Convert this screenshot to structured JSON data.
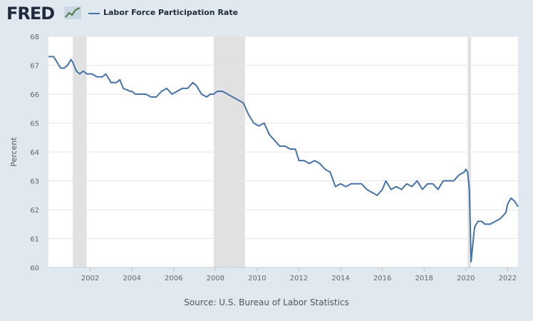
{
  "header": {
    "logo_text": "FRED",
    "logo_icon": "fred-line-mark-icon",
    "series_legend": "Labor Force Participation Rate"
  },
  "colors": {
    "background": "#e1e9f0",
    "plot_background": "#ffffff",
    "line": "#4572a7",
    "recession": "#e1e1e1",
    "grid": "#e6e6e6"
  },
  "chart_data": {
    "type": "line",
    "title": "",
    "xlabel": "",
    "ylabel": "Percent",
    "xlim": [
      "2000-01",
      "2022-07"
    ],
    "ylim": [
      60,
      68
    ],
    "y_ticks": [
      60,
      61,
      62,
      63,
      64,
      65,
      66,
      67,
      68
    ],
    "x_ticks": [
      "2002",
      "2004",
      "2006",
      "2008",
      "2010",
      "2012",
      "2014",
      "2016",
      "2018",
      "2020",
      "2022"
    ],
    "grid": true,
    "legend": "top-left",
    "recessions": [
      {
        "start": "2001-03",
        "end": "2001-11"
      },
      {
        "start": "2007-12",
        "end": "2009-06"
      },
      {
        "start": "2020-02",
        "end": "2020-04"
      }
    ],
    "series": [
      {
        "name": "Labor Force Participation Rate",
        "points": [
          [
            "2000-01",
            67.3
          ],
          [
            "2000-04",
            67.3
          ],
          [
            "2000-06",
            67.1
          ],
          [
            "2000-08",
            66.9
          ],
          [
            "2000-10",
            66.9
          ],
          [
            "2000-12",
            67.0
          ],
          [
            "2001-02",
            67.2
          ],
          [
            "2001-03",
            67.1
          ],
          [
            "2001-05",
            66.8
          ],
          [
            "2001-07",
            66.7
          ],
          [
            "2001-09",
            66.8
          ],
          [
            "2001-11",
            66.7
          ],
          [
            "2002-02",
            66.7
          ],
          [
            "2002-05",
            66.6
          ],
          [
            "2002-08",
            66.6
          ],
          [
            "2002-10",
            66.7
          ],
          [
            "2003-01",
            66.4
          ],
          [
            "2003-04",
            66.4
          ],
          [
            "2003-06",
            66.5
          ],
          [
            "2003-08",
            66.2
          ],
          [
            "2003-12",
            66.1
          ],
          [
            "2004-01",
            66.1
          ],
          [
            "2004-03",
            66.0
          ],
          [
            "2004-06",
            66.0
          ],
          [
            "2004-09",
            66.0
          ],
          [
            "2004-12",
            65.9
          ],
          [
            "2005-03",
            65.9
          ],
          [
            "2005-06",
            66.1
          ],
          [
            "2005-09",
            66.2
          ],
          [
            "2005-12",
            66.0
          ],
          [
            "2006-03",
            66.1
          ],
          [
            "2006-06",
            66.2
          ],
          [
            "2006-09",
            66.2
          ],
          [
            "2006-12",
            66.4
          ],
          [
            "2007-02",
            66.3
          ],
          [
            "2007-05",
            66.0
          ],
          [
            "2007-08",
            65.9
          ],
          [
            "2007-10",
            66.0
          ],
          [
            "2007-12",
            66.0
          ],
          [
            "2008-02",
            66.1
          ],
          [
            "2008-05",
            66.1
          ],
          [
            "2008-08",
            66.0
          ],
          [
            "2008-11",
            65.9
          ],
          [
            "2009-02",
            65.8
          ],
          [
            "2009-05",
            65.7
          ],
          [
            "2009-08",
            65.3
          ],
          [
            "2009-11",
            65.0
          ],
          [
            "2010-02",
            64.9
          ],
          [
            "2010-05",
            65.0
          ],
          [
            "2010-08",
            64.6
          ],
          [
            "2010-11",
            64.4
          ],
          [
            "2011-02",
            64.2
          ],
          [
            "2011-05",
            64.2
          ],
          [
            "2011-08",
            64.1
          ],
          [
            "2011-11",
            64.1
          ],
          [
            "2012-01",
            63.7
          ],
          [
            "2012-04",
            63.7
          ],
          [
            "2012-07",
            63.6
          ],
          [
            "2012-10",
            63.7
          ],
          [
            "2013-01",
            63.6
          ],
          [
            "2013-04",
            63.4
          ],
          [
            "2013-07",
            63.3
          ],
          [
            "2013-10",
            62.8
          ],
          [
            "2014-01",
            62.9
          ],
          [
            "2014-04",
            62.8
          ],
          [
            "2014-07",
            62.9
          ],
          [
            "2014-10",
            62.9
          ],
          [
            "2015-01",
            62.9
          ],
          [
            "2015-04",
            62.7
          ],
          [
            "2015-07",
            62.6
          ],
          [
            "2015-10",
            62.5
          ],
          [
            "2016-01",
            62.7
          ],
          [
            "2016-03",
            63.0
          ],
          [
            "2016-06",
            62.7
          ],
          [
            "2016-09",
            62.8
          ],
          [
            "2016-12",
            62.7
          ],
          [
            "2017-03",
            62.9
          ],
          [
            "2017-06",
            62.8
          ],
          [
            "2017-09",
            63.0
          ],
          [
            "2017-12",
            62.7
          ],
          [
            "2018-03",
            62.9
          ],
          [
            "2018-06",
            62.9
          ],
          [
            "2018-09",
            62.7
          ],
          [
            "2018-12",
            63.0
          ],
          [
            "2019-03",
            63.0
          ],
          [
            "2019-06",
            63.0
          ],
          [
            "2019-09",
            63.2
          ],
          [
            "2019-12",
            63.3
          ],
          [
            "2020-01",
            63.4
          ],
          [
            "2020-02",
            63.3
          ],
          [
            "2020-03",
            62.7
          ],
          [
            "2020-04",
            60.2
          ],
          [
            "2020-05",
            60.8
          ],
          [
            "2020-06",
            61.4
          ],
          [
            "2020-08",
            61.6
          ],
          [
            "2020-10",
            61.6
          ],
          [
            "2020-12",
            61.5
          ],
          [
            "2021-03",
            61.5
          ],
          [
            "2021-06",
            61.6
          ],
          [
            "2021-09",
            61.7
          ],
          [
            "2021-12",
            61.9
          ],
          [
            "2022-01",
            62.2
          ],
          [
            "2022-03",
            62.4
          ],
          [
            "2022-05",
            62.3
          ],
          [
            "2022-06",
            62.2
          ],
          [
            "2022-07",
            62.1
          ]
        ]
      }
    ]
  },
  "footer": {
    "source": "Source: U.S. Bureau of Labor Statistics"
  }
}
